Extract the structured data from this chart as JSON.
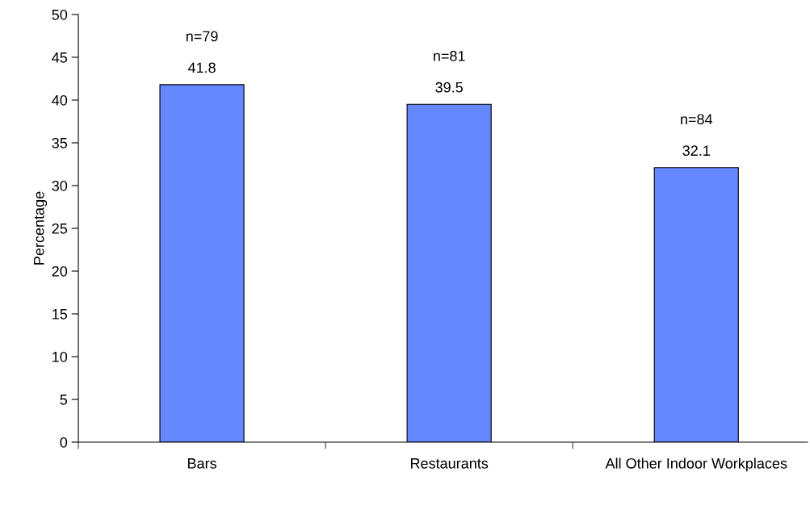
{
  "chart_data": {
    "type": "bar",
    "ylabel": "Percentage",
    "categories": [
      "Bars",
      "Restaurants",
      "All Other Indoor Workplaces"
    ],
    "values": [
      41.8,
      39.5,
      32.1
    ],
    "color": "#6688ff",
    "ylim": [
      0,
      50
    ],
    "yticks": [
      0,
      5,
      10,
      15,
      20,
      25,
      30,
      35,
      40,
      45,
      50
    ],
    "data_labels": true,
    "grid": false,
    "legend": false,
    "annotations": [
      {
        "text": "n=79",
        "x": "Bars",
        "y": 41.8
      },
      {
        "text": "n=81",
        "x": "Restaurants",
        "y": 39.5
      },
      {
        "text": "n=84",
        "x": "All Other Indoor Workplaces",
        "y": 32.1
      }
    ]
  }
}
